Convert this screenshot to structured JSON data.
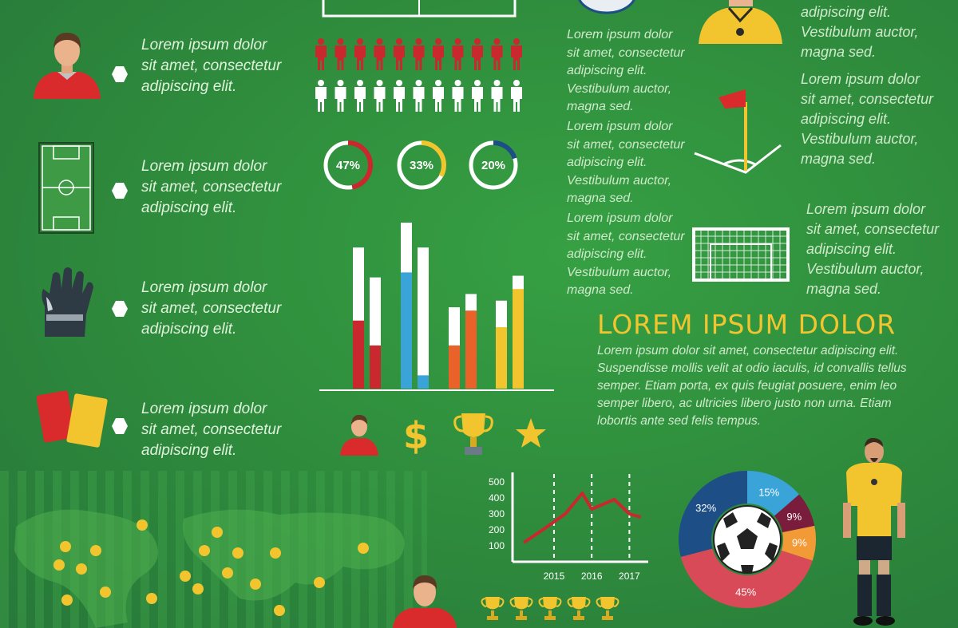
{
  "left_items": [
    {
      "icon": "player-icon",
      "line1": "Lorem ipsum dolor",
      "line2": "sit amet, consectetur",
      "line3": "adipiscing elit."
    },
    {
      "icon": "field-icon",
      "line1": "Lorem ipsum dolor",
      "line2": "sit amet, consectetur",
      "line3": "adipiscing elit."
    },
    {
      "icon": "goalkeeper-glove-icon",
      "line1": "Lorem ipsum dolor",
      "line2": "sit amet, consectetur",
      "line3": "adipiscing elit."
    },
    {
      "icon": "cards-icon",
      "line1": "Lorem ipsum dolor",
      "line2": "sit amet, consectetur",
      "line3": "adipiscing elit."
    }
  ],
  "middle_texts": [
    {
      "l1": "Lorem ipsum dolor",
      "l2": "sit amet, consectetur",
      "l3": "adipiscing elit.",
      "l4": "Vestibulum auctor,",
      "l5": "magna sed."
    },
    {
      "l1": "Lorem ipsum dolor",
      "l2": "sit amet, consectetur",
      "l3": "adipiscing elit.",
      "l4": "Vestibulum auctor,",
      "l5": "magna sed."
    },
    {
      "l1": "Lorem ipsum dolor",
      "l2": "sit amet, consectetur",
      "l3": "adipiscing elit.",
      "l4": "Vestibulum auctor,",
      "l5": "magna sed."
    }
  ],
  "right_texts": {
    "top": {
      "l1": "adipiscing elit.",
      "l2": "Vestibulum auctor,",
      "l3": "magna sed."
    },
    "flag": {
      "l1": "Lorem ipsum dolor",
      "l2": "sit amet, consectetur",
      "l3": "adipiscing elit.",
      "l4": "Vestibulum auctor,",
      "l5": "magna sed."
    },
    "goal": {
      "l1": "Lorem ipsum dolor",
      "l2": "sit amet, consectetur",
      "l3": "adipiscing elit.",
      "l4": "Vestibulum auctor,",
      "l5": "magna sed."
    }
  },
  "heading": "LOREM IPSUM DOLOR",
  "paragraph_lines": [
    "Lorem ipsum dolor sit amet, consectetur adipiscing elit.",
    "Suspendisse mollis velit at odio iaculis, id convallis tellus",
    "semper. Etiam porta, ex quis feugiat posuere, enim leo",
    "semper libero, ac ultricies libero justo non urna. Etiam",
    "lobortis ante sed felis tempus."
  ],
  "people_icons": {
    "red_count": 11,
    "white_count": 11
  },
  "bar_icons": [
    "player-icon",
    "dollar-icon",
    "trophy-icon",
    "star-icon"
  ],
  "trophy_row_count": 5,
  "colors": {
    "red": "#c8282e",
    "yellow": "#f2c52e",
    "blue": "#3aa3d8",
    "orange": "#e8622a",
    "navy": "#1e4e86",
    "maroon": "#7a1c3c",
    "white": "#ffffff"
  },
  "chart_data": [
    {
      "type": "pie",
      "variant": "donut",
      "slices": [
        {
          "label": "47%",
          "value": 47,
          "color": "#c8282e"
        }
      ],
      "center_label": "47%"
    },
    {
      "type": "pie",
      "variant": "donut",
      "slices": [
        {
          "label": "33%",
          "value": 33,
          "color": "#f2c52e"
        }
      ],
      "center_label": "33%"
    },
    {
      "type": "pie",
      "variant": "donut",
      "slices": [
        {
          "label": "20%",
          "value": 20,
          "color": "#1e4e86"
        }
      ],
      "center_label": "20%"
    },
    {
      "type": "bar",
      "stacked": true,
      "note_unlabeled": "",
      "groups": [
        {
          "bars": [
            {
              "total": 0.85,
              "fill": 0.41,
              "color": "#c8282e"
            },
            {
              "total": 0.67,
              "fill": 0.26,
              "color": "#c8282e"
            }
          ]
        },
        {
          "bars": [
            {
              "total": 1.0,
              "fill": 0.7,
              "color": "#3aa3d8"
            },
            {
              "total": 0.85,
              "fill": 0.08,
              "color": "#3aa3d8"
            }
          ]
        },
        {
          "bars": [
            {
              "total": 0.49,
              "fill": 0.26,
              "color": "#e8622a"
            },
            {
              "total": 0.57,
              "fill": 0.47,
              "color": "#e8622a"
            }
          ]
        },
        {
          "bars": [
            {
              "total": 0.53,
              "fill": 0.37,
              "color": "#f2c52e"
            },
            {
              "total": 0.68,
              "fill": 0.6,
              "color": "#f2c52e"
            }
          ]
        }
      ]
    },
    {
      "type": "line",
      "x_ticks": [
        "2015",
        "2016",
        "2017"
      ],
      "y_ticks": [
        "100",
        "200",
        "300",
        "400",
        "500"
      ],
      "ylim": [
        0,
        550
      ],
      "series": [
        {
          "color": "#c8282e",
          "points": [
            [
              2014.2,
              120
            ],
            [
              2014.7,
              200
            ],
            [
              2015.3,
              300
            ],
            [
              2015.75,
              430
            ],
            [
              2016.0,
              330
            ],
            [
              2016.6,
              390
            ],
            [
              2017.0,
              300
            ],
            [
              2017.3,
              280
            ]
          ]
        }
      ],
      "xlim": [
        2013.9,
        2017.5
      ]
    },
    {
      "type": "pie",
      "variant": "donut",
      "slices": [
        {
          "label": "15%",
          "value": 15,
          "color": "#3aa3d8"
        },
        {
          "label": "9%",
          "value": 9,
          "color": "#7a1c3c"
        },
        {
          "label": "9%",
          "value": 9,
          "color": "#f29a36"
        },
        {
          "label": "45%",
          "value": 45,
          "color": "#d94a58"
        },
        {
          "label": "32%",
          "value": 32,
          "color": "#1e4e86"
        }
      ]
    }
  ],
  "map_dots": 19
}
